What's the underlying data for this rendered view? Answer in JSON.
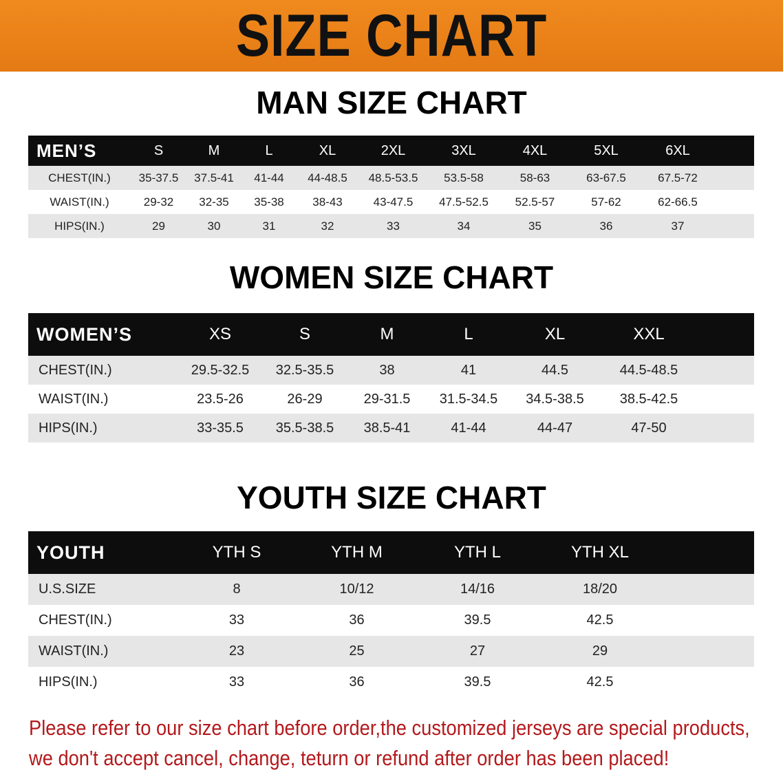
{
  "banner_title": "SIZE CHART",
  "accent_color": "#e8801c",
  "note_color": "#b3191c",
  "men": {
    "title": "MAN SIZE CHART",
    "header": [
      "MEN’S",
      "S",
      "M",
      "L",
      "XL",
      "2XL",
      "3XL",
      "4XL",
      "5XL",
      "6XL"
    ],
    "rows": [
      [
        "CHEST(IN.)",
        "35-37.5",
        "37.5-41",
        "41-44",
        "44-48.5",
        "48.5-53.5",
        "53.5-58",
        "58-63",
        "63-67.5",
        "67.5-72"
      ],
      [
        "WAIST(IN.)",
        "29-32",
        "32-35",
        "35-38",
        "38-43",
        "43-47.5",
        "47.5-52.5",
        "52.5-57",
        "57-62",
        "62-66.5"
      ],
      [
        "HIPS(IN.)",
        "29",
        "30",
        "31",
        "32",
        "33",
        "34",
        "35",
        "36",
        "37"
      ]
    ]
  },
  "women": {
    "title": "WOMEN SIZE CHART",
    "header": [
      "WOMEN’S",
      "XS",
      "S",
      "M",
      "L",
      "XL",
      "XXL"
    ],
    "rows": [
      [
        "CHEST(IN.)",
        "29.5-32.5",
        "32.5-35.5",
        "38",
        "41",
        "44.5",
        "44.5-48.5"
      ],
      [
        "WAIST(IN.)",
        "23.5-26",
        "26-29",
        "29-31.5",
        "31.5-34.5",
        "34.5-38.5",
        "38.5-42.5"
      ],
      [
        "HIPS(IN.)",
        "33-35.5",
        "35.5-38.5",
        "38.5-41",
        "41-44",
        "44-47",
        "47-50"
      ]
    ]
  },
  "youth": {
    "title": "YOUTH SIZE CHART",
    "header": [
      "YOUTH",
      "YTH S",
      "YTH M",
      "YTH L",
      "YTH XL"
    ],
    "rows": [
      [
        "U.S.SIZE",
        "8",
        "10/12",
        "14/16",
        "18/20"
      ],
      [
        "CHEST(IN.)",
        "33",
        "36",
        "39.5",
        "42.5"
      ],
      [
        "WAIST(IN.)",
        "23",
        "25",
        "27",
        "29"
      ],
      [
        "HIPS(IN.)",
        "33",
        "36",
        "39.5",
        "42.5"
      ]
    ]
  },
  "note": {
    "line1": "Please refer to our size chart before order,the customized jerseys are special products,",
    "line2": "we don't accept cancel, change, teturn or refund after order has been placed!"
  }
}
